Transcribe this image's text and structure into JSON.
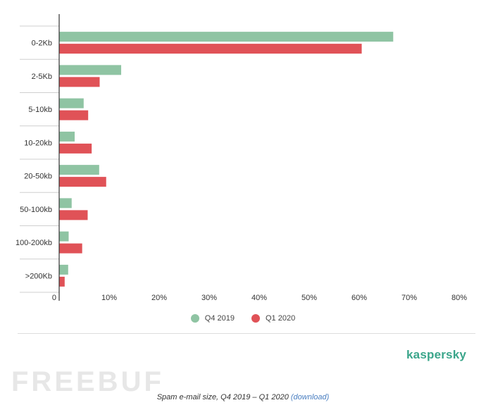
{
  "chart_data": {
    "type": "bar",
    "orientation": "horizontal",
    "categories": [
      "0-2Kb",
      "2-5Kb",
      "5-10kb",
      "10-20kb",
      "20-50kb",
      "50-100kb",
      "100-200kb",
      ">200Kb"
    ],
    "series": [
      {
        "name": "Q4 2019",
        "color": "#8fc4a3",
        "values": [
          66.8,
          12.4,
          4.9,
          3.1,
          8.0,
          2.5,
          1.9,
          1.8
        ]
      },
      {
        "name": "Q1 2020",
        "color": "#e05257",
        "values": [
          60.5,
          8.1,
          5.8,
          6.5,
          9.4,
          5.7,
          4.6,
          1.1
        ]
      }
    ],
    "xlim": [
      0,
      80
    ],
    "x_ticks": [
      "0",
      "10%",
      "20%",
      "30%",
      "40%",
      "50%",
      "60%",
      "70%",
      "80%"
    ],
    "grid": false,
    "legend_position": "bottom"
  },
  "legend": {
    "q4_label": "Q4 2019",
    "q1_label": "Q1 2020"
  },
  "brand": "kaspersky",
  "watermark": "FREEBUF",
  "caption": {
    "text": "Spam e-mail size, Q4 2019 – Q1 2020",
    "link": "(download)"
  }
}
